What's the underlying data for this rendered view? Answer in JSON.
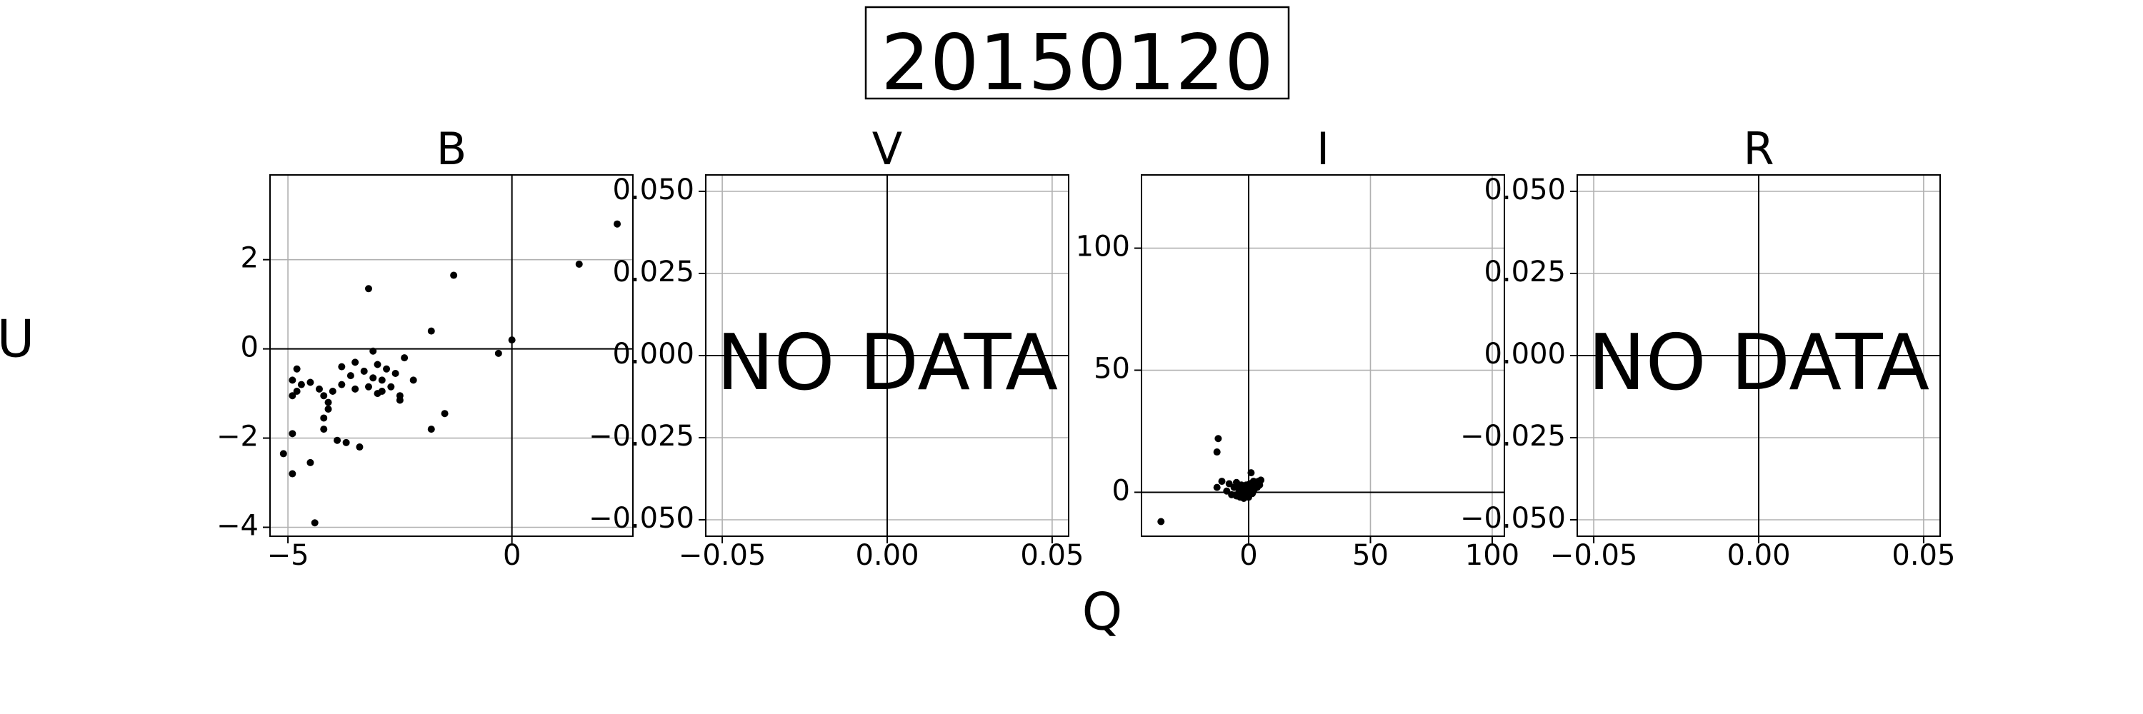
{
  "figure": {
    "title": "20150120",
    "xlabel": "Q",
    "ylabel": "U"
  },
  "chart_data": [
    {
      "type": "scatter",
      "title": "B",
      "no_data": false,
      "xlim": [
        -5.4,
        2.7
      ],
      "ylim": [
        -4.2,
        3.9
      ],
      "xticks": [
        -5,
        0
      ],
      "xtick_labels": [
        "−5",
        "0"
      ],
      "yticks": [
        -4,
        -2,
        0,
        2
      ],
      "ytick_labels": [
        "−4",
        "−2",
        "0",
        "2"
      ],
      "grid": true,
      "points": [
        [
          2.35,
          2.8
        ],
        [
          1.5,
          1.9
        ],
        [
          -1.3,
          1.65
        ],
        [
          -3.2,
          1.35
        ],
        [
          -1.8,
          0.4
        ],
        [
          0.0,
          0.2
        ],
        [
          -0.3,
          -0.1
        ],
        [
          -3.1,
          -0.05
        ],
        [
          -2.4,
          -0.2
        ],
        [
          -3.5,
          -0.3
        ],
        [
          -3.0,
          -0.35
        ],
        [
          -4.8,
          -0.45
        ],
        [
          -3.8,
          -0.4
        ],
        [
          -3.3,
          -0.5
        ],
        [
          -2.8,
          -0.45
        ],
        [
          -2.6,
          -0.55
        ],
        [
          -3.6,
          -0.6
        ],
        [
          -4.9,
          -0.7
        ],
        [
          -4.5,
          -0.75
        ],
        [
          -3.1,
          -0.65
        ],
        [
          -2.9,
          -0.7
        ],
        [
          -2.2,
          -0.7
        ],
        [
          -4.7,
          -0.8
        ],
        [
          -3.8,
          -0.8
        ],
        [
          -3.2,
          -0.85
        ],
        [
          -2.7,
          -0.85
        ],
        [
          -4.3,
          -0.9
        ],
        [
          -3.5,
          -0.9
        ],
        [
          -2.9,
          -0.95
        ],
        [
          -4.0,
          -0.95
        ],
        [
          -3.0,
          -1.0
        ],
        [
          -4.9,
          -1.05
        ],
        [
          -4.8,
          -0.95
        ],
        [
          -4.2,
          -1.05
        ],
        [
          -2.5,
          -1.05
        ],
        [
          -4.1,
          -1.2
        ],
        [
          -2.5,
          -1.15
        ],
        [
          -4.1,
          -1.35
        ],
        [
          -1.5,
          -1.45
        ],
        [
          -4.2,
          -1.55
        ],
        [
          -4.2,
          -1.8
        ],
        [
          -1.8,
          -1.8
        ],
        [
          -4.9,
          -1.9
        ],
        [
          -3.7,
          -2.1
        ],
        [
          -3.9,
          -2.05
        ],
        [
          -3.4,
          -2.2
        ],
        [
          -5.1,
          -2.35
        ],
        [
          -4.5,
          -2.55
        ],
        [
          -4.9,
          -2.8
        ],
        [
          -4.4,
          -3.9
        ]
      ]
    },
    {
      "type": "scatter",
      "title": "V",
      "no_data": true,
      "no_data_label": "NO DATA",
      "xlim": [
        -0.055,
        0.055
      ],
      "ylim": [
        -0.055,
        0.055
      ],
      "xticks": [
        -0.05,
        0.0,
        0.05
      ],
      "xtick_labels": [
        "−0.05",
        "0.00",
        "0.05"
      ],
      "yticks": [
        -0.05,
        -0.025,
        0.0,
        0.025,
        0.05
      ],
      "ytick_labels": [
        "−0.050",
        "−0.025",
        "0.000",
        "0.025",
        "0.050"
      ],
      "grid": true,
      "points": []
    },
    {
      "type": "scatter",
      "title": "I",
      "no_data": false,
      "xlim": [
        -44,
        105
      ],
      "ylim": [
        -18,
        130
      ],
      "xticks": [
        0,
        50,
        100
      ],
      "xtick_labels": [
        "0",
        "50",
        "100"
      ],
      "yticks": [
        0,
        50,
        100
      ],
      "ytick_labels": [
        "0",
        "50",
        "100"
      ],
      "grid": true,
      "points": [
        [
          -36,
          -12
        ],
        [
          -12.5,
          22
        ],
        [
          -13,
          16.5
        ],
        [
          -13,
          2
        ],
        [
          -11,
          4.5
        ],
        [
          -8,
          3.5
        ],
        [
          -9,
          0.5
        ],
        [
          -7,
          -1
        ],
        [
          -6,
          2
        ],
        [
          -5,
          4
        ],
        [
          -5,
          -1.5
        ],
        [
          -4,
          0
        ],
        [
          -4,
          2
        ],
        [
          -3.5,
          -2
        ],
        [
          -3,
          1
        ],
        [
          -3,
          3
        ],
        [
          -2.5,
          -1
        ],
        [
          -2,
          0
        ],
        [
          -2,
          -2.5
        ],
        [
          -2,
          2.5
        ],
        [
          -1.5,
          1
        ],
        [
          -1,
          -1
        ],
        [
          -1,
          3
        ],
        [
          -0.5,
          0
        ],
        [
          0,
          -2
        ],
        [
          0,
          1.5
        ],
        [
          0.5,
          0
        ],
        [
          0.5,
          3.5
        ],
        [
          1,
          1
        ],
        [
          1,
          8
        ],
        [
          1.5,
          -0.5
        ],
        [
          1.5,
          2.5
        ],
        [
          2,
          0.5
        ],
        [
          2,
          4.5
        ],
        [
          2.5,
          1.5
        ],
        [
          3,
          3
        ],
        [
          3.5,
          2
        ],
        [
          4,
          4.5
        ],
        [
          4.5,
          3
        ],
        [
          5,
          5
        ]
      ]
    },
    {
      "type": "scatter",
      "title": "R",
      "no_data": true,
      "no_data_label": "NO DATA",
      "xlim": [
        -0.055,
        0.055
      ],
      "ylim": [
        -0.055,
        0.055
      ],
      "xticks": [
        -0.05,
        0.0,
        0.05
      ],
      "xtick_labels": [
        "−0.05",
        "0.00",
        "0.05"
      ],
      "yticks": [
        -0.05,
        -0.025,
        0.0,
        0.025,
        0.05
      ],
      "ytick_labels": [
        "−0.050",
        "−0.025",
        "0.000",
        "0.025",
        "0.050"
      ],
      "grid": true,
      "points": []
    }
  ]
}
